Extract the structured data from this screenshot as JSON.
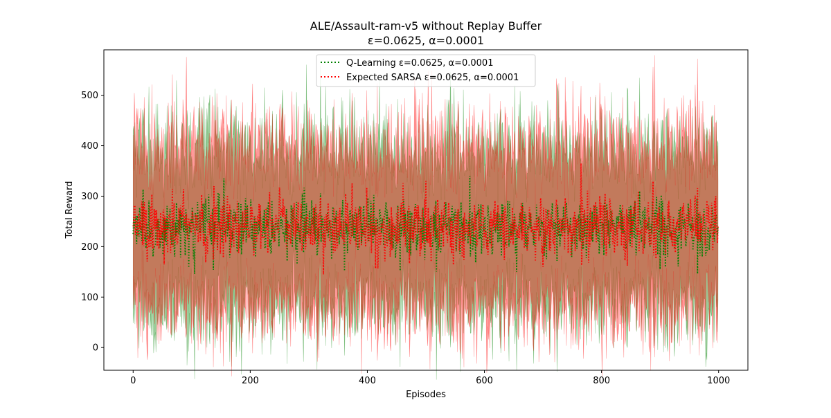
{
  "chart_data": {
    "type": "line",
    "title": "ALE/Assault-ram-v5 without Replay Buffer",
    "subtitle": "ε=0.0625, α=0.0001",
    "xlabel": "Episodes",
    "ylabel": "Total Reward",
    "xlim": [
      -50,
      1050
    ],
    "ylim": [
      -45,
      590
    ],
    "xticks": [
      0,
      200,
      400,
      600,
      800,
      1000
    ],
    "yticks": [
      0,
      100,
      200,
      300,
      400,
      500
    ],
    "grid": false,
    "legend_position": "top-center",
    "n_points": 1000,
    "series": [
      {
        "name": "Q-Learning ε=0.0625, α=0.0001",
        "color": "#008000",
        "linestyle": "dotted",
        "mean_level": 240,
        "noise_amplitude": 30,
        "band_half_width": 155,
        "band_opacity": 0.4,
        "sample_means": [
          {
            "x": 0,
            "y": 225
          },
          {
            "x": 100,
            "y": 245
          },
          {
            "x": 155,
            "y": 335
          },
          {
            "x": 200,
            "y": 240
          },
          {
            "x": 280,
            "y": 165
          },
          {
            "x": 400,
            "y": 240
          },
          {
            "x": 500,
            "y": 250
          },
          {
            "x": 575,
            "y": 340
          },
          {
            "x": 700,
            "y": 240
          },
          {
            "x": 800,
            "y": 240
          },
          {
            "x": 900,
            "y": 155
          },
          {
            "x": 1000,
            "y": 240
          }
        ]
      },
      {
        "name": "Expected SARSA ε=0.0625, α=0.0001",
        "color": "#ff0000",
        "linestyle": "dotted",
        "mean_level": 240,
        "noise_amplitude": 30,
        "band_half_width": 160,
        "band_opacity": 0.4,
        "sample_means": [
          {
            "x": 0,
            "y": 240
          },
          {
            "x": 100,
            "y": 235
          },
          {
            "x": 200,
            "y": 240
          },
          {
            "x": 325,
            "y": 145
          },
          {
            "x": 400,
            "y": 240
          },
          {
            "x": 500,
            "y": 330
          },
          {
            "x": 600,
            "y": 240
          },
          {
            "x": 700,
            "y": 160
          },
          {
            "x": 765,
            "y": 365
          },
          {
            "x": 800,
            "y": 240
          },
          {
            "x": 900,
            "y": 240
          },
          {
            "x": 1000,
            "y": 240
          }
        ]
      }
    ]
  }
}
